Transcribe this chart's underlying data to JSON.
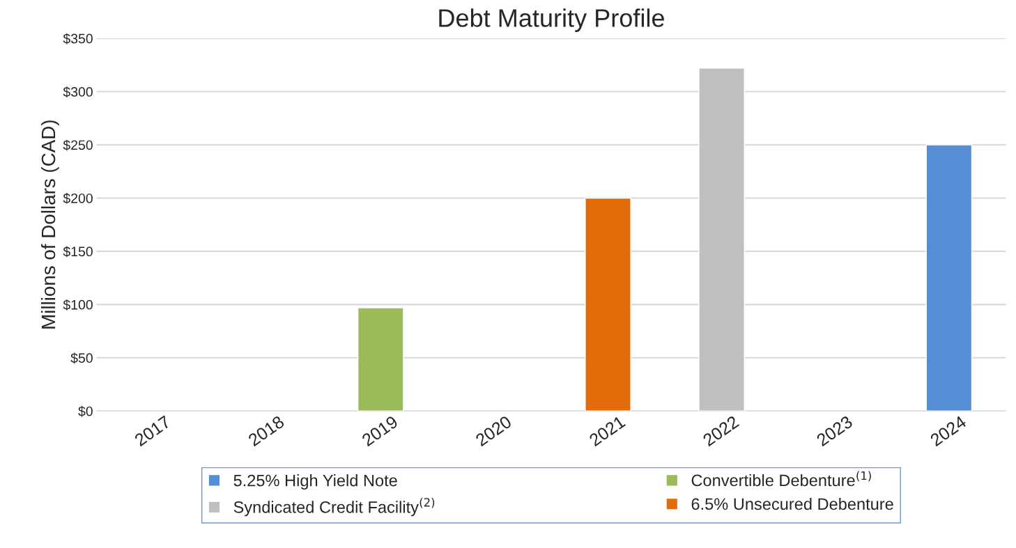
{
  "chart_data": {
    "type": "bar",
    "title": "Debt Maturity Profile",
    "ylabel": "Millions of Dollars (CAD)",
    "categories": [
      "2017",
      "2018",
      "2019",
      "2020",
      "2021",
      "2022",
      "2023",
      "2024"
    ],
    "stacked": true,
    "series": [
      {
        "name": "5.25% High Yield Note",
        "color": "#558ed5",
        "values": [
          null,
          null,
          null,
          null,
          null,
          null,
          null,
          250
        ]
      },
      {
        "name": "Syndicated Credit Facility$^{(2)}$",
        "color": "#bfbfbf",
        "values": [
          null,
          null,
          null,
          null,
          null,
          322,
          null,
          null
        ]
      },
      {
        "name": "Convertible Debenture$^{(1)}$",
        "color": "#9bbb59",
        "values": [
          null,
          null,
          97,
          null,
          null,
          null,
          null,
          null
        ]
      },
      {
        "name": "6.5% Unsecured Debenture",
        "color": "#e36c0a",
        "values": [
          null,
          null,
          null,
          null,
          200,
          null,
          null,
          null
        ]
      }
    ],
    "ylim": [
      0,
      350
    ],
    "yticks": [
      {
        "value": 0,
        "label": "$0"
      },
      {
        "value": 50,
        "label": "$50"
      },
      {
        "value": 100,
        "label": "$100"
      },
      {
        "value": 150,
        "label": "$150"
      },
      {
        "value": 200,
        "label": "$200"
      },
      {
        "value": 250,
        "label": "$250"
      },
      {
        "value": 300,
        "label": "$300"
      },
      {
        "value": 350,
        "label": "$350"
      }
    ],
    "grid": "y",
    "legend": "bottom"
  }
}
